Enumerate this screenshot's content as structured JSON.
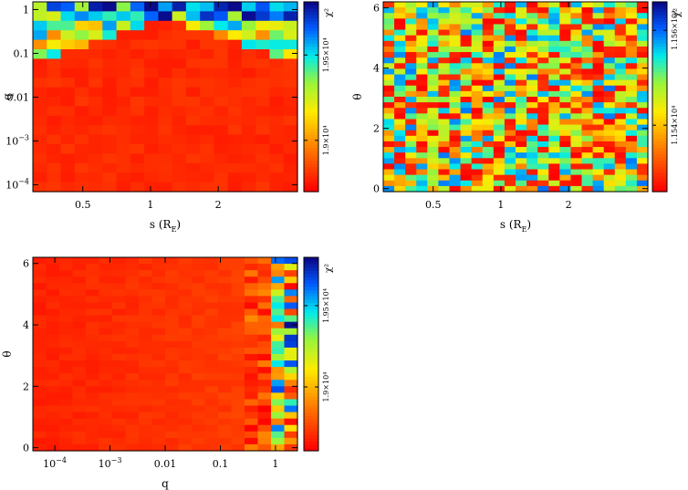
{
  "chart_data": [
    {
      "type": "heatmap",
      "xlabel": "s (R_E)",
      "xlabel_main": "s (R",
      "xlabel_sub": "E",
      "xlabel_end": ")",
      "ylabel": "q",
      "colorbar_label": "χ²",
      "x_scale": "log",
      "y_scale": "log",
      "xlim": [
        0.3,
        4.5
      ],
      "ylim": [
        7e-05,
        1.5
      ],
      "x_ticks": [
        {
          "v": 0.5,
          "label": "0.5"
        },
        {
          "v": 1,
          "label": "1"
        },
        {
          "v": 2,
          "label": "2"
        }
      ],
      "y_ticks": [
        {
          "v": 1,
          "label": "1"
        },
        {
          "v": 0.1,
          "label": "0.1"
        },
        {
          "v": 0.01,
          "label": "0.01"
        },
        {
          "v": 0.001,
          "label": "10",
          "sup": "−3"
        },
        {
          "v": 0.0001,
          "label": "10",
          "sup": "−4"
        }
      ],
      "colorbar_ticks": [
        {
          "f": 0.27,
          "label": "1.9×10⁴"
        },
        {
          "f": 0.72,
          "label": "1.95×10⁴"
        }
      ],
      "grid": {
        "nx": 19,
        "ny": 20
      },
      "pattern": "q-threshold",
      "seed": 11
    },
    {
      "type": "heatmap",
      "xlabel": "s (R_E)",
      "xlabel_main": "s (R",
      "xlabel_sub": "E",
      "xlabel_end": ")",
      "ylabel": "θ",
      "colorbar_label": "χ²",
      "x_scale": "log",
      "y_scale": "linear",
      "xlim": [
        0.3,
        4.5
      ],
      "ylim": [
        -0.1,
        6.2
      ],
      "x_ticks": [
        {
          "v": 0.5,
          "label": "0.5"
        },
        {
          "v": 1,
          "label": "1"
        },
        {
          "v": 2,
          "label": "2"
        }
      ],
      "y_ticks": [
        {
          "v": 0,
          "label": "0"
        },
        {
          "v": 2,
          "label": "2"
        },
        {
          "v": 4,
          "label": "4"
        },
        {
          "v": 6,
          "label": "6"
        }
      ],
      "colorbar_ticks": [
        {
          "f": 0.35,
          "label": "1.154×10⁴"
        },
        {
          "f": 0.85,
          "label": "1.156×10⁴"
        }
      ],
      "grid": {
        "nx": 24,
        "ny": 34
      },
      "pattern": "noise",
      "seed": 29
    },
    {
      "type": "heatmap",
      "xlabel": "q",
      "ylabel": "θ",
      "colorbar_label": "χ²",
      "x_scale": "log",
      "y_scale": "linear",
      "xlim": [
        4e-05,
        2.5
      ],
      "ylim": [
        -0.1,
        6.2
      ],
      "x_ticks": [
        {
          "v": 0.0001,
          "label": "10",
          "sup": "−4"
        },
        {
          "v": 0.001,
          "label": "10",
          "sup": "−3"
        },
        {
          "v": 0.01,
          "label": "0.01"
        },
        {
          "v": 0.1,
          "label": "0.1"
        },
        {
          "v": 1,
          "label": "1"
        }
      ],
      "y_ticks": [
        {
          "v": 0,
          "label": "0"
        },
        {
          "v": 2,
          "label": "2"
        },
        {
          "v": 4,
          "label": "4"
        },
        {
          "v": 6,
          "label": "6"
        }
      ],
      "colorbar_ticks": [
        {
          "f": 0.33,
          "label": "1.9×10⁴"
        },
        {
          "f": 0.75,
          "label": "1.95×10⁴"
        }
      ],
      "grid": {
        "nx": 20,
        "ny": 30
      },
      "pattern": "q-columns",
      "seed": 7
    }
  ]
}
